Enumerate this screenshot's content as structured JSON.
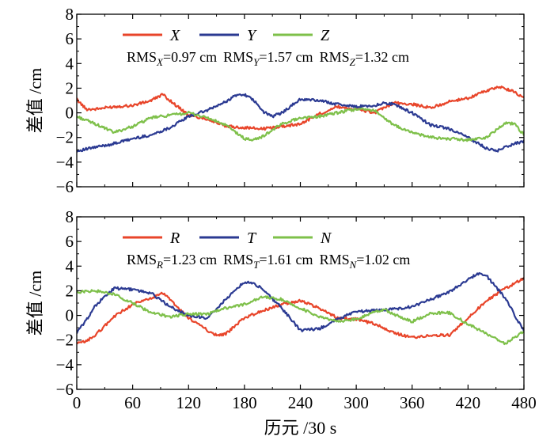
{
  "chart_data": [
    {
      "type": "line",
      "ylabel": "差值 /cm",
      "xlim": [
        0,
        480
      ],
      "ylim": [
        -6,
        8
      ],
      "xticks": [
        0,
        60,
        120,
        180,
        240,
        300,
        360,
        420,
        480
      ],
      "yticks": [
        -6,
        -4,
        -2,
        0,
        2,
        4,
        6,
        8
      ],
      "tick_labels_x": [
        "0",
        "60",
        "120",
        "180",
        "240",
        "300",
        "360",
        "420",
        "480"
      ],
      "tick_labels_y": [
        "−6",
        "−4",
        "−2",
        "0",
        "2",
        "4",
        "6",
        "8"
      ],
      "stats": [
        {
          "prefix": "RMS",
          "sub": "X",
          "value": "=0.97 cm"
        },
        {
          "prefix": "RMS",
          "sub": "Y",
          "value": "=1.57 cm"
        },
        {
          "prefix": "RMS",
          "sub": "Z",
          "value": "=1.32 cm"
        }
      ],
      "series": [
        {
          "name": "X",
          "color": "#e8452a",
          "x": [
            0,
            10,
            20,
            40,
            60,
            80,
            92,
            100,
            120,
            140,
            160,
            180,
            200,
            220,
            240,
            260,
            280,
            300,
            320,
            340,
            360,
            380,
            400,
            420,
            440,
            455,
            470,
            480
          ],
          "y": [
            1.1,
            0.3,
            0.3,
            0.5,
            0.6,
            1.0,
            1.5,
            1.0,
            -0.2,
            -0.5,
            -1.1,
            -1.2,
            -1.3,
            -1.1,
            -0.9,
            -0.1,
            0.5,
            0.3,
            0.0,
            0.8,
            0.7,
            0.4,
            0.9,
            1.2,
            1.8,
            2.1,
            1.7,
            1.2
          ]
        },
        {
          "name": "Y",
          "color": "#2b3a92",
          "x": [
            0,
            20,
            40,
            60,
            80,
            100,
            120,
            140,
            160,
            170,
            180,
            190,
            200,
            210,
            220,
            240,
            260,
            280,
            300,
            320,
            330,
            340,
            360,
            380,
            400,
            420,
            440,
            450,
            460,
            470,
            480
          ],
          "y": [
            -3.1,
            -2.8,
            -2.5,
            -2.1,
            -1.8,
            -1.2,
            -0.3,
            0.2,
            0.9,
            1.4,
            1.5,
            1.0,
            0.1,
            -0.3,
            0.0,
            1.1,
            1.0,
            0.7,
            0.5,
            0.6,
            0.8,
            0.7,
            0.0,
            -1.0,
            -1.3,
            -2.0,
            -2.9,
            -3.1,
            -2.8,
            -2.5,
            -2.3
          ]
        },
        {
          "name": "Z",
          "color": "#7ec04a",
          "x": [
            0,
            20,
            40,
            60,
            80,
            100,
            120,
            140,
            160,
            180,
            190,
            200,
            220,
            240,
            260,
            280,
            300,
            320,
            340,
            360,
            380,
            400,
            420,
            440,
            460,
            470,
            480
          ],
          "y": [
            -0.3,
            -0.9,
            -1.6,
            -1.1,
            -0.4,
            -0.2,
            0.0,
            -0.4,
            -1.0,
            -2.1,
            -2.2,
            -1.9,
            -0.9,
            -0.4,
            -0.3,
            0.0,
            0.3,
            0.2,
            -1.0,
            -1.6,
            -2.0,
            -2.1,
            -2.2,
            -2.0,
            -0.8,
            -0.9,
            -1.8
          ]
        }
      ]
    },
    {
      "type": "line",
      "ylabel": "差值 /cm",
      "xlabel": "历元 /30 s",
      "xlim": [
        0,
        480
      ],
      "ylim": [
        -6,
        8
      ],
      "xticks": [
        0,
        60,
        120,
        180,
        240,
        300,
        360,
        420,
        480
      ],
      "yticks": [
        -6,
        -4,
        -2,
        0,
        2,
        4,
        6,
        8
      ],
      "tick_labels_x": [
        "0",
        "60",
        "120",
        "180",
        "240",
        "300",
        "360",
        "420",
        "480"
      ],
      "tick_labels_y": [
        "−6",
        "−4",
        "−2",
        "0",
        "2",
        "4",
        "6",
        "8"
      ],
      "stats": [
        {
          "prefix": "RMS",
          "sub": "R",
          "value": "=1.23 cm"
        },
        {
          "prefix": "RMS",
          "sub": "T",
          "value": "=1.61 cm"
        },
        {
          "prefix": "RMS",
          "sub": "N",
          "value": "=1.02 cm"
        }
      ],
      "series": [
        {
          "name": "R",
          "color": "#e8452a",
          "x": [
            0,
            10,
            20,
            40,
            60,
            80,
            92,
            100,
            110,
            120,
            140,
            150,
            160,
            180,
            200,
            220,
            240,
            260,
            280,
            300,
            320,
            340,
            360,
            380,
            400,
            420,
            440,
            460,
            480
          ],
          "y": [
            -2.3,
            -2.1,
            -1.6,
            -0.1,
            0.9,
            1.4,
            1.8,
            1.3,
            0.5,
            -0.2,
            -1.2,
            -1.6,
            -1.5,
            -0.2,
            0.4,
            0.9,
            1.2,
            0.6,
            -0.2,
            -0.3,
            -0.7,
            -1.4,
            -1.8,
            -1.6,
            -1.6,
            -0.2,
            1.2,
            2.2,
            3.0
          ]
        },
        {
          "name": "T",
          "color": "#2b3a92",
          "x": [
            0,
            10,
            20,
            40,
            60,
            80,
            100,
            120,
            140,
            160,
            170,
            180,
            190,
            200,
            220,
            240,
            260,
            280,
            300,
            320,
            340,
            360,
            380,
            400,
            420,
            430,
            440,
            460,
            480
          ],
          "y": [
            -1.4,
            -0.4,
            0.8,
            2.2,
            2.1,
            1.8,
            0.7,
            0.0,
            -0.2,
            1.3,
            2.1,
            2.7,
            2.6,
            2.1,
            0.6,
            -1.2,
            -1.1,
            -0.3,
            0.3,
            0.4,
            0.5,
            0.7,
            1.3,
            1.9,
            2.9,
            3.4,
            3.2,
            1.4,
            -1.3
          ]
        },
        {
          "name": "N",
          "color": "#7ec04a",
          "x": [
            0,
            20,
            40,
            60,
            80,
            100,
            120,
            140,
            160,
            180,
            200,
            220,
            240,
            260,
            280,
            300,
            320,
            330,
            340,
            360,
            380,
            400,
            420,
            440,
            460,
            480
          ],
          "y": [
            1.9,
            2.0,
            1.7,
            1.0,
            0.2,
            -0.1,
            0.1,
            0.1,
            0.6,
            0.9,
            1.5,
            1.3,
            0.6,
            -0.1,
            -0.5,
            -0.3,
            0.3,
            0.5,
            0.1,
            -0.5,
            0.2,
            0.2,
            -0.7,
            -1.5,
            -2.3,
            -1.3
          ]
        }
      ]
    }
  ]
}
